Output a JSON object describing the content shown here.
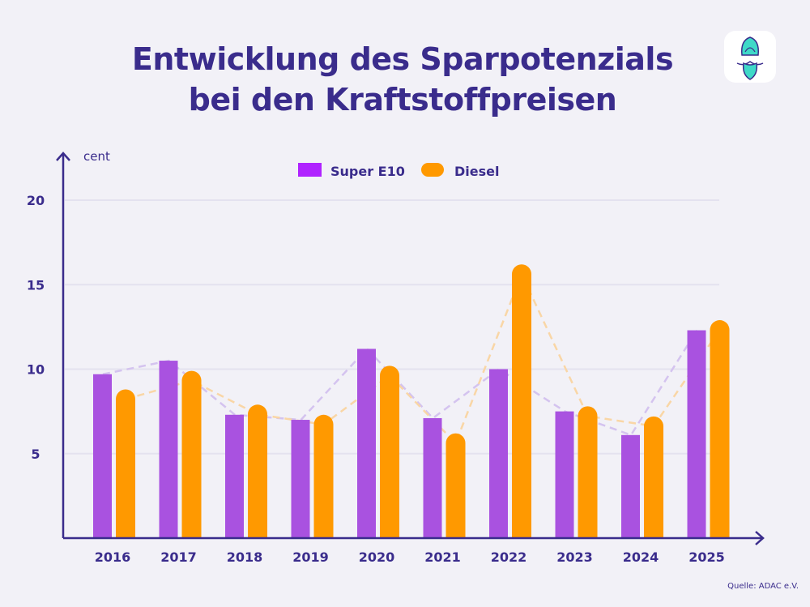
{
  "title_line1": "Entwicklung des Sparpotenzials",
  "title_line2": "bei den Kraftstoffpreisen",
  "source": "Quelle: ADAC e.V.",
  "logo_icon": "bearded-turban-mascot-icon",
  "colors": {
    "super_e10": "#a952e0",
    "super_e10_legend": "#b023ff",
    "diesel": "#ff9900",
    "text": "#3a2c8c"
  },
  "chart_data": {
    "type": "bar",
    "ylabel": "cent",
    "ylim": [
      0,
      20
    ],
    "yticks": [
      5,
      10,
      15,
      20
    ],
    "grid": true,
    "legend": "top-center",
    "categories": [
      "2016",
      "2017",
      "2018",
      "2019",
      "2020",
      "2021",
      "2022",
      "2023",
      "2024",
      "2025"
    ],
    "series": [
      {
        "name": "Super E10",
        "values": [
          9.7,
          10.5,
          7.3,
          7.0,
          11.2,
          7.1,
          10.0,
          7.5,
          6.1,
          12.3
        ]
      },
      {
        "name": "Diesel",
        "values": [
          8.8,
          9.9,
          7.9,
          7.3,
          10.2,
          6.2,
          16.2,
          7.8,
          7.2,
          12.9
        ]
      }
    ],
    "trend_lines": "dashed"
  }
}
